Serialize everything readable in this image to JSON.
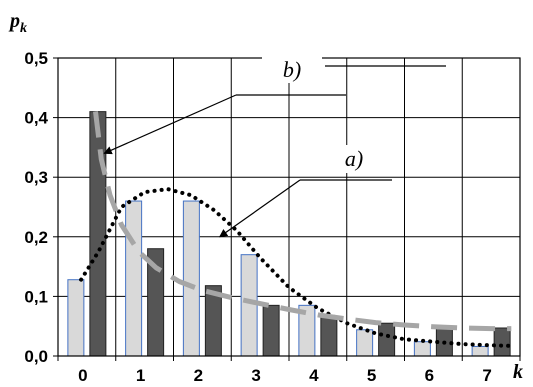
{
  "chart_data": {
    "type": "bar",
    "x": [
      0,
      1,
      2,
      3,
      4,
      5,
      6,
      7
    ],
    "x_tick_labels": [
      "0",
      "1",
      "2",
      "3",
      "4",
      "5",
      "6",
      "7"
    ],
    "y_tick_labels": [
      "0,0",
      "0,1",
      "0,2",
      "0,3",
      "0,4",
      "0,5"
    ],
    "ylim": [
      0,
      0.5
    ],
    "ylabel": "p",
    "ylabel_sub": "k",
    "xlabel": "k",
    "grid": true,
    "series": [
      {
        "values": [
          0.128,
          0.26,
          0.26,
          0.17,
          0.085,
          0.044,
          0.024,
          0.016
        ],
        "color": "#d9d9d9",
        "edge": "#4472c4"
      },
      {
        "values": [
          0.41,
          0.18,
          0.118,
          0.085,
          0.067,
          0.055,
          0.05,
          0.047
        ],
        "color": "#555555",
        "edge": "#222222"
      }
    ],
    "curves": [
      {
        "label": "a)",
        "style": "dotted",
        "color": "#000000",
        "points": [
          [
            -0.1,
            0.128
          ],
          [
            0.2,
            0.175
          ],
          [
            0.6,
            0.25
          ],
          [
            1.0,
            0.275
          ],
          [
            1.4,
            0.28
          ],
          [
            1.8,
            0.27
          ],
          [
            2.2,
            0.245
          ],
          [
            2.6,
            0.21
          ],
          [
            3.0,
            0.165
          ],
          [
            3.5,
            0.115
          ],
          [
            4.0,
            0.08
          ],
          [
            4.5,
            0.055
          ],
          [
            5.0,
            0.038
          ],
          [
            5.5,
            0.028
          ],
          [
            6.0,
            0.024
          ],
          [
            6.5,
            0.02
          ],
          [
            7.0,
            0.018
          ],
          [
            7.35,
            0.017
          ]
        ]
      },
      {
        "label": "b)",
        "style": "dashed",
        "color": "#a6a6a6",
        "points": [
          [
            0.15,
            0.41
          ],
          [
            0.25,
            0.33
          ],
          [
            0.4,
            0.27
          ],
          [
            0.6,
            0.22
          ],
          [
            0.9,
            0.175
          ],
          [
            1.2,
            0.148
          ],
          [
            1.6,
            0.125
          ],
          [
            2.0,
            0.11
          ],
          [
            2.5,
            0.098
          ],
          [
            3.0,
            0.088
          ],
          [
            3.5,
            0.078
          ],
          [
            4.0,
            0.069
          ],
          [
            4.5,
            0.062
          ],
          [
            5.0,
            0.056
          ],
          [
            5.5,
            0.052
          ],
          [
            6.0,
            0.049
          ],
          [
            6.5,
            0.047
          ],
          [
            7.0,
            0.046
          ],
          [
            7.35,
            0.046
          ]
        ]
      }
    ],
    "annotations": [
      {
        "text": "b)",
        "target": [
          0.3,
          0.34
        ]
      },
      {
        "text": "a)",
        "target": [
          2.3,
          0.2
        ]
      }
    ]
  }
}
